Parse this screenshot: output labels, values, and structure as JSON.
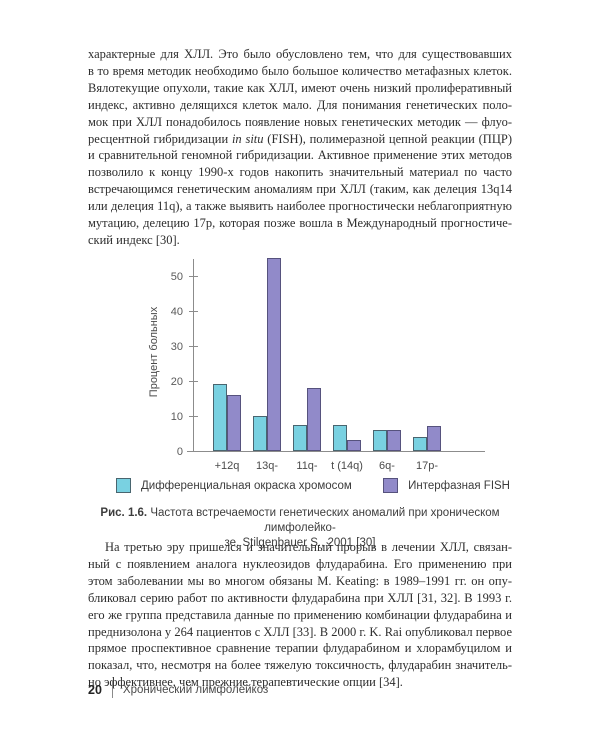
{
  "paragraph1": {
    "lines": [
      "характерные для ХЛЛ. Это было обусловлено тем, что для существовавших",
      "в то время методик необходимо было большое количество метафазных клеток.",
      "Вялотекущие опухоли, такие как ХЛЛ, имеют очень низкий пролиферативный",
      "индекс, активно делящихся клеток мало. Для понимания генетических поло-",
      "мок при ХЛЛ понадобилось появление новых генетических методик — флуо-",
      "ресцентной гибридизации *in situ* (FISH), полимеразной цепной реакции (ПЦР)",
      "и сравнительной геномной гибридизации. Активное применение этих методов",
      "позволило к концу 1990-х годов накопить значительный материал по часто",
      "встречающимся генетическим аномалиям при ХЛЛ (таким, как делеция 13q14",
      "или делеция 11q), а также выявить наиболее прогностически неблагоприятную",
      "мутацию, делецию 17p, которая позже вошла в Международный прогностиче-",
      "ский индекс [30]."
    ]
  },
  "paragraph2": {
    "lines": [
      "На третью эру пришелся и значительный прорыв в лечении ХЛЛ, связан-",
      "ный с появлением аналога нуклеозидов флударабина. Его применению при",
      "этом заболевании мы во многом обязаны M. Keating: в 1989–1991 гг. он опу-",
      "бликовал серию работ по активности флударабина при ХЛЛ [31, 32]. В 1993 г.",
      "его же группа представила данные по применению комбинации флударабина и",
      "преднизолона у 264 пациентов с ХЛЛ [33]. В 2000 г. K. Rai опубликовал первое",
      "прямое проспективное сравнение терапии флударабином и хлорамбуцилом и",
      "показал, что, несмотря на более тяжелую токсичность, флударабин значитель-",
      "но эффективнее, чем прежние терапевтические опции [34]."
    ]
  },
  "figure": {
    "caption_label": "Рис. 1.6.",
    "caption_line1_rest": " Частота встречаемости генетических аномалий при хроническом лимфолейко-",
    "caption_line2": "зе. Stilgenbauer S., 2001 [30]"
  },
  "chart_data": {
    "type": "bar",
    "title": "",
    "xlabel": "",
    "ylabel": "Процент больных",
    "categories": [
      "+12q",
      "13q-",
      "11q-",
      "t (14q)",
      "6q-",
      "17p-"
    ],
    "series": [
      {
        "name": "Дифференциальная окраска хромосом",
        "color": "#79d1e1",
        "border": "#49656f",
        "values": [
          19,
          10,
          7.5,
          7.5,
          6,
          4
        ]
      },
      {
        "name": "Интерфазная FISH",
        "color": "#918ac9",
        "border": "#56527d",
        "values": [
          16,
          55,
          18,
          3,
          6,
          7
        ]
      }
    ],
    "ylim": [
      0,
      57
    ],
    "yticks": [
      0,
      10,
      20,
      30,
      40,
      50
    ],
    "grid": false,
    "legend_position": "bottom"
  },
  "footer": {
    "page_number": "20",
    "running_title": "Хронический лимфолейкоз"
  }
}
